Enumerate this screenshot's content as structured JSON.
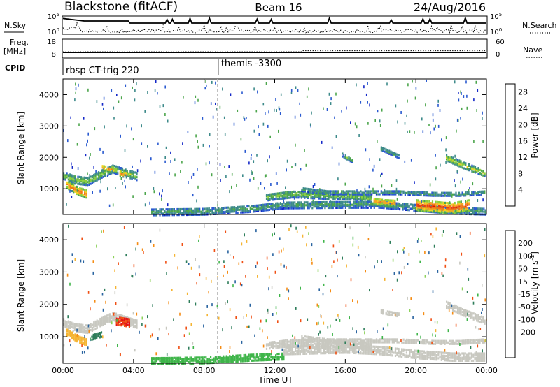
{
  "header": {
    "station": "Blackstone (fitACF)",
    "beam": "Beam 16",
    "date": "24/Aug/2016"
  },
  "left_labels": {
    "nsky": "N.Sky",
    "freq": "Freq.",
    "freq_unit": "[MHz]",
    "cpid": "CPID"
  },
  "right_labels": {
    "nsearch": "N.Search",
    "nave": "Nave"
  },
  "noise_panel": {
    "left_ticks": [
      "10^5",
      "10^0"
    ],
    "right_ticks": [
      "10^5",
      "10^0"
    ]
  },
  "freq_panel": {
    "left_ticks": [
      "18",
      "8"
    ],
    "right_ticks": [
      "60",
      "0"
    ],
    "freq_value_mhz": 10.6,
    "nave_low": 18,
    "nave_high": 22
  },
  "cpid_panel": {
    "segments": [
      {
        "label": "rbsp CT-trig 220",
        "start_hour": 0
      },
      {
        "label": "themis -3300",
        "start_hour": 8.8
      }
    ]
  },
  "chart_data": [
    {
      "type": "heatmap",
      "name": "power",
      "xlabel": "",
      "ylabel": "Slant Range [km]",
      "xlim": [
        0,
        24
      ],
      "ylim": [
        180,
        4500
      ],
      "x_ticks": [
        "00:00",
        "04:00",
        "08:00",
        "12:00",
        "16:00",
        "20:00",
        "00:00"
      ],
      "y_ticks": [
        1000,
        2000,
        3000,
        4000
      ],
      "colorbar": {
        "label": "Power [dB]",
        "ticks": [
          4,
          8,
          12,
          16,
          20,
          24,
          28
        ],
        "colors": [
          "#1428c8",
          "#2a5ad0",
          "#3d8a8a",
          "#4ca64c",
          "#8ccf3c",
          "#f2d21e",
          "#f5a623",
          "#f07818",
          "#e63c14",
          "#dc0a0a"
        ]
      },
      "blobs": [
        {
          "x": [
            0.0,
            0.6,
            1.4,
            2.2,
            2.8,
            3.6,
            4.2
          ],
          "y": [
            1450,
            1300,
            1250,
            1500,
            1650,
            1500,
            1400
          ],
          "half": 120,
          "value": 14
        },
        {
          "x": [
            0.2,
            0.8,
            1.3
          ],
          "y": [
            1150,
            950,
            850
          ],
          "half": 120,
          "value": 24
        },
        {
          "x": [
            2.2,
            2.9
          ],
          "y": [
            1680,
            1620
          ],
          "half": 80,
          "value": 22
        },
        {
          "x": [
            3.2,
            3.6
          ],
          "y": [
            1500,
            1450
          ],
          "half": 80,
          "value": 24
        },
        {
          "x": [
            5.0,
            8.0,
            10.5,
            12.5,
            16.0,
            18.0,
            20.0,
            22.0,
            23.9
          ],
          "y": [
            280,
            300,
            380,
            500,
            520,
            520,
            420,
            330,
            300
          ],
          "half": 110,
          "value": 10
        },
        {
          "x": [
            11.5,
            13.0,
            15.0,
            16.5,
            17.5
          ],
          "y": [
            750,
            850,
            800,
            780,
            700
          ],
          "half": 110,
          "value": 13
        },
        {
          "x": [
            13.5,
            15.0,
            17.0,
            19.0,
            21.0,
            22.5,
            23.9
          ],
          "y": [
            1000,
            900,
            900,
            900,
            850,
            850,
            900
          ],
          "half": 60,
          "value": 10
        },
        {
          "x": [
            17.6,
            18.2,
            18.8
          ],
          "y": [
            620,
            580,
            560
          ],
          "half": 110,
          "value": 22
        },
        {
          "x": [
            20.0,
            21.0,
            22.0,
            23.0
          ],
          "y": [
            500,
            450,
            400,
            500
          ],
          "half": 170,
          "value": 26
        },
        {
          "x": [
            21.7,
            22.7,
            23.9
          ],
          "y": [
            2000,
            1750,
            1500
          ],
          "half": 90,
          "value": 16
        },
        {
          "x": [
            15.8,
            16.4
          ],
          "y": [
            2100,
            1900
          ],
          "half": 60,
          "value": 12
        },
        {
          "x": [
            18.0,
            19.0
          ],
          "y": [
            2300,
            2050
          ],
          "half": 60,
          "value": 10
        }
      ]
    },
    {
      "type": "heatmap",
      "name": "velocity",
      "xlabel": "Time UT",
      "ylabel": "Slant Range [km]",
      "xlim": [
        0,
        24
      ],
      "ylim": [
        180,
        4500
      ],
      "x_ticks": [
        "00:00",
        "04:00",
        "08:00",
        "12:00",
        "16:00",
        "20:00",
        "00:00"
      ],
      "y_ticks": [
        1000,
        2000,
        3000,
        4000
      ],
      "colorbar": {
        "label": "Velocity [m s^-1]",
        "ticks": [
          200,
          100,
          50,
          15,
          -15,
          -50,
          -100,
          -200
        ],
        "colors": [
          "#1e32b4",
          "#2a64a0",
          "#2e7d5a",
          "#3fb54a",
          "#8cd25a",
          "#c8c8c0",
          "#f5b432",
          "#f58c14",
          "#f05014",
          "#e61414"
        ]
      },
      "blobs": [
        {
          "x": [
            0.0,
            0.6,
            1.4,
            2.2,
            2.8,
            3.6,
            4.2
          ],
          "y": [
            1450,
            1300,
            1250,
            1500,
            1650,
            1500,
            1400
          ],
          "half": 120,
          "value": -5
        },
        {
          "x": [
            0.2,
            0.8,
            1.3
          ],
          "y": [
            1150,
            950,
            850
          ],
          "half": 100,
          "value": -30
        },
        {
          "x": [
            1.6,
            2.2
          ],
          "y": [
            1000,
            1100
          ],
          "half": 80,
          "value": 60
        },
        {
          "x": [
            3.0,
            3.8
          ],
          "y": [
            1520,
            1450
          ],
          "half": 130,
          "value": -200
        },
        {
          "x": [
            5.0,
            8.0,
            10.5,
            12.5
          ],
          "y": [
            280,
            300,
            380,
            420
          ],
          "half": 110,
          "value": 40
        },
        {
          "x": [
            12.5,
            16.0,
            18.0,
            20.0,
            22.0,
            23.9
          ],
          "y": [
            600,
            650,
            600,
            480,
            400,
            400
          ],
          "half": 130,
          "value": -5
        },
        {
          "x": [
            11.5,
            13.0,
            15.0,
            16.5,
            17.5
          ],
          "y": [
            750,
            850,
            800,
            780,
            700
          ],
          "half": 110,
          "value": -5
        },
        {
          "x": [
            13.5,
            15.0,
            17.0,
            19.0,
            21.0,
            22.5,
            23.9
          ],
          "y": [
            1000,
            900,
            900,
            900,
            850,
            850,
            900
          ],
          "half": 60,
          "value": -5
        },
        {
          "x": [
            21.7,
            22.7,
            23.9
          ],
          "y": [
            2000,
            1750,
            1500
          ],
          "half": 90,
          "value": -5
        },
        {
          "x": [
            18.0,
            19.0
          ],
          "y": [
            1800,
            1700
          ],
          "half": 60,
          "value": -5
        }
      ]
    }
  ]
}
